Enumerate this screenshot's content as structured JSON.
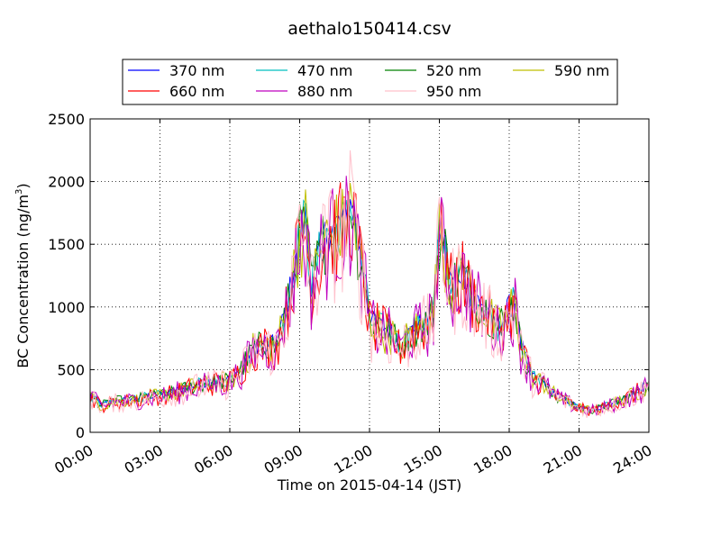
{
  "chart_data": {
    "type": "line",
    "title": "aethalo150414.csv",
    "xlabel": "Time on 2015-04-14 (JST)",
    "ylabel": "BC Concentration (ng/m",
    "ylabel_superscript": "3",
    "ylabel_suffix": ")",
    "x_unit": "hours",
    "xlim": [
      0,
      24
    ],
    "ylim": [
      0,
      2500
    ],
    "xticks": [
      0,
      3,
      6,
      9,
      12,
      15,
      18,
      21,
      24
    ],
    "xtick_labels": [
      "00:00",
      "03:00",
      "06:00",
      "09:00",
      "12:00",
      "15:00",
      "18:00",
      "21:00",
      "24:00"
    ],
    "yticks": [
      0,
      500,
      1000,
      1500,
      2000,
      2500
    ],
    "ytick_labels": [
      "0",
      "500",
      "1000",
      "1500",
      "2000",
      "2500"
    ],
    "grid": true,
    "legend_position": "top-center",
    "series": [
      {
        "name": "370 nm",
        "color": "#0000ff"
      },
      {
        "name": "470 nm",
        "color": "#00bfbf"
      },
      {
        "name": "520 nm",
        "color": "#008000"
      },
      {
        "name": "590 nm",
        "color": "#bfbf00"
      },
      {
        "name": "660 nm",
        "color": "#ff0000"
      },
      {
        "name": "880 nm",
        "color": "#bf00bf"
      },
      {
        "name": "950 nm",
        "color": "#ffc0cb"
      }
    ],
    "x": [
      0.0,
      0.5,
      1.0,
      1.5,
      2.0,
      2.5,
      3.0,
      3.5,
      4.0,
      4.5,
      5.0,
      5.5,
      6.0,
      6.5,
      7.0,
      7.5,
      8.0,
      8.5,
      9.0,
      9.25,
      9.5,
      10.0,
      10.5,
      11.0,
      11.25,
      11.5,
      11.75,
      12.0,
      12.5,
      13.0,
      13.25,
      13.5,
      14.0,
      14.5,
      14.75,
      15.0,
      15.25,
      15.5,
      16.0,
      16.5,
      17.0,
      17.5,
      18.0,
      18.25,
      18.5,
      19.0,
      19.5,
      20.0,
      20.5,
      21.0,
      21.5,
      22.0,
      22.5,
      23.0,
      23.5,
      24.0
    ],
    "base_values": [
      300,
      220,
      250,
      260,
      270,
      290,
      300,
      320,
      350,
      380,
      400,
      410,
      420,
      520,
      680,
      720,
      700,
      1050,
      1600,
      1700,
      1200,
      1550,
      1650,
      1700,
      1900,
      1500,
      1300,
      900,
      850,
      800,
      700,
      750,
      850,
      900,
      1000,
      1600,
      1480,
      1200,
      1300,
      1100,
      1000,
      850,
      1000,
      1050,
      700,
      450,
      400,
      300,
      250,
      200,
      180,
      200,
      240,
      280,
      330,
      380
    ]
  }
}
